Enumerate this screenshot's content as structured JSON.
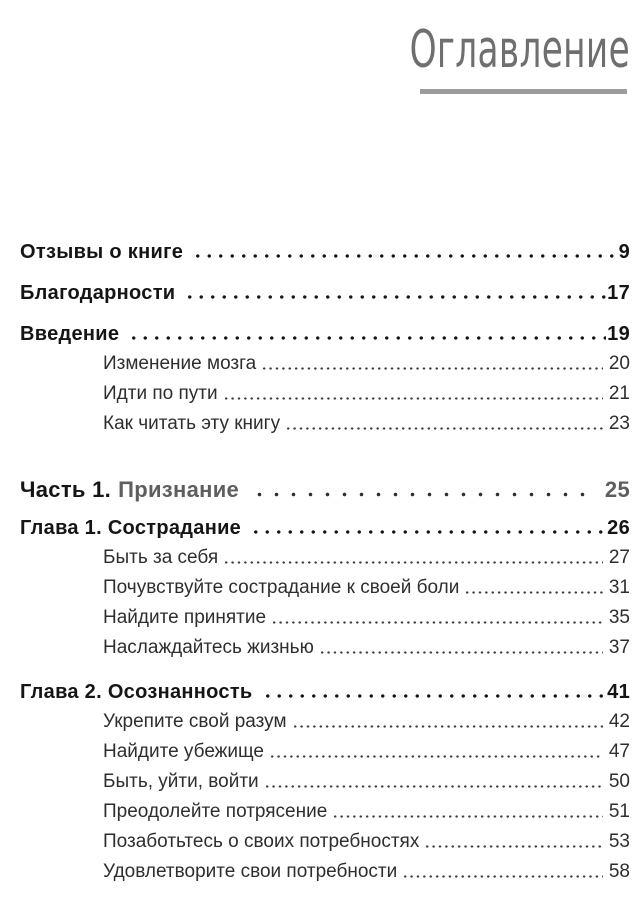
{
  "page": {
    "title": "Оглавление"
  },
  "colors": {
    "background": "#ffffff",
    "heading_gray": "#6f6f6f",
    "rule_gray": "#9c9c9c",
    "entry_black": "#151515",
    "sub_entry_gray": "#2e2e2e",
    "part_accent_gray": "#5e5e5e"
  },
  "toc": {
    "entries": [
      {
        "type": "l1",
        "label": "Отзывы о книге",
        "page": "9"
      },
      {
        "type": "l1",
        "label": "Благодарности",
        "page": "17"
      },
      {
        "type": "l1",
        "label": "Введение",
        "page": "19"
      },
      {
        "type": "sub",
        "label": "Изменение мозга",
        "page": "20"
      },
      {
        "type": "sub",
        "label": "Идти по пути",
        "page": "21"
      },
      {
        "type": "sub",
        "label": "Как читать эту книгу",
        "page": "23"
      },
      {
        "type": "part",
        "prefix": "Часть 1.",
        "label": "Признание",
        "page": "25"
      },
      {
        "type": "ch",
        "label": "Глава 1. Сострадание",
        "page": "26"
      },
      {
        "type": "sub",
        "label": "Быть за себя",
        "page": "27"
      },
      {
        "type": "sub",
        "label": "Почувствуйте сострадание к своей боли",
        "page": "31"
      },
      {
        "type": "sub",
        "label": "Найдите принятие",
        "page": "35"
      },
      {
        "type": "sub",
        "label": "Наслаждайтесь жизнью",
        "page": "37"
      },
      {
        "type": "ch",
        "label": "Глава 2. Осознанность",
        "page": "41"
      },
      {
        "type": "sub",
        "label": "Укрепите свой разум",
        "page": "42"
      },
      {
        "type": "sub",
        "label": "Найдите убежище",
        "page": "47"
      },
      {
        "type": "sub",
        "label": "Быть, уйти, войти",
        "page": "50"
      },
      {
        "type": "sub",
        "label": "Преодолейте потрясение",
        "page": "51"
      },
      {
        "type": "sub",
        "label": "Позаботьтесь о своих потребностях",
        "page": "53"
      },
      {
        "type": "sub",
        "label": "Удовлетворите свои потребности",
        "page": "58"
      }
    ]
  }
}
